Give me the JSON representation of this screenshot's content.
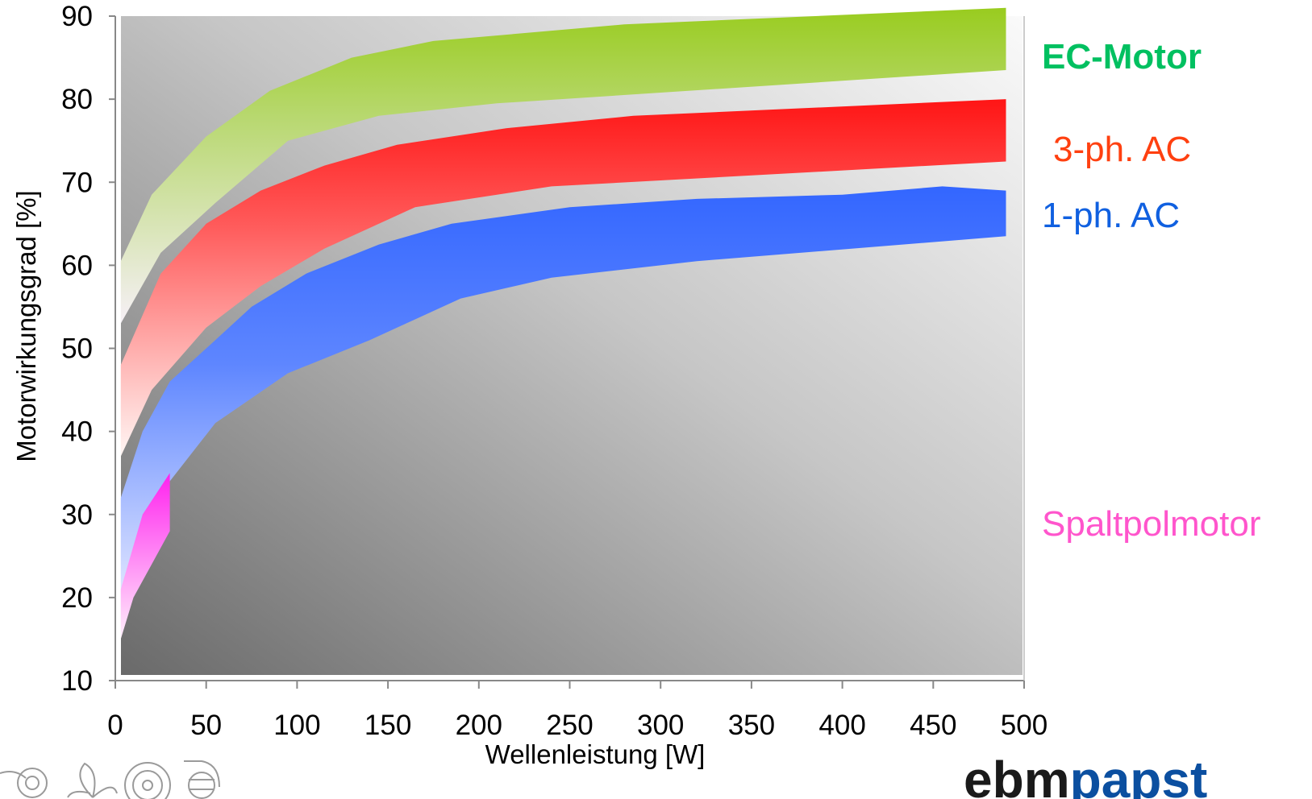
{
  "chart_data": {
    "type": "area",
    "xlabel": "Wellenleistung [W]",
    "ylabel": "Motorwirkungsgrad [%]",
    "xlim": [
      0,
      500
    ],
    "ylim": [
      10,
      90
    ],
    "x_ticks": [
      "0",
      "50",
      "100",
      "150",
      "200",
      "250",
      "300",
      "350",
      "400",
      "450",
      "500"
    ],
    "y_ticks": [
      "10",
      "20",
      "30",
      "40",
      "50",
      "60",
      "70",
      "80",
      "90"
    ],
    "grid": false,
    "legend_placement": "right",
    "series": [
      {
        "name": "EC-Motor",
        "color": "#00c060",
        "fill_color": "#99cc1f",
        "upper": [
          [
            3,
            60.5
          ],
          [
            20,
            68.5
          ],
          [
            50,
            75.5
          ],
          [
            85,
            81
          ],
          [
            130,
            85
          ],
          [
            175,
            87
          ],
          [
            280,
            89
          ],
          [
            490,
            91
          ]
        ],
        "lower": [
          [
            3,
            53
          ],
          [
            25,
            61.5
          ],
          [
            55,
            67.5
          ],
          [
            95,
            75
          ],
          [
            145,
            78
          ],
          [
            210,
            79.5
          ],
          [
            490,
            83.5
          ]
        ]
      },
      {
        "name": "3-ph. AC",
        "color": "#ff4010",
        "fill_color": "#ff1a1a",
        "upper": [
          [
            3,
            48
          ],
          [
            25,
            59
          ],
          [
            50,
            65
          ],
          [
            80,
            69
          ],
          [
            115,
            72
          ],
          [
            155,
            74.5
          ],
          [
            215,
            76.5
          ],
          [
            285,
            78
          ],
          [
            490,
            80
          ]
        ],
        "lower": [
          [
            3,
            37
          ],
          [
            20,
            45
          ],
          [
            50,
            52.5
          ],
          [
            80,
            57.5
          ],
          [
            115,
            62
          ],
          [
            165,
            67
          ],
          [
            240,
            69.5
          ],
          [
            490,
            72.5
          ]
        ]
      },
      {
        "name": "1-ph. AC",
        "color": "#1060e0",
        "fill_color": "#3366ff",
        "upper": [
          [
            3,
            32
          ],
          [
            15,
            40
          ],
          [
            30,
            46
          ],
          [
            55,
            51
          ],
          [
            75,
            55
          ],
          [
            105,
            59
          ],
          [
            145,
            62.5
          ],
          [
            185,
            65
          ],
          [
            250,
            67
          ],
          [
            320,
            68
          ],
          [
            400,
            68.5
          ],
          [
            455,
            69.5
          ],
          [
            490,
            69
          ]
        ],
        "lower": [
          [
            3,
            16
          ],
          [
            15,
            25
          ],
          [
            30,
            34
          ],
          [
            55,
            41
          ],
          [
            95,
            47
          ],
          [
            140,
            51
          ],
          [
            190,
            56
          ],
          [
            240,
            58.5
          ],
          [
            320,
            60.5
          ],
          [
            490,
            63.5
          ]
        ]
      },
      {
        "name": "Spaltpolmotor",
        "color": "#ff55cc",
        "fill_color": "#ff22ee",
        "upper": [
          [
            3,
            21
          ],
          [
            15,
            30
          ],
          [
            30,
            35
          ]
        ],
        "lower": [
          [
            3,
            15
          ],
          [
            10,
            20
          ],
          [
            20,
            24
          ],
          [
            30,
            28
          ]
        ]
      }
    ]
  },
  "brand": {
    "logo_part1": "ebm",
    "logo_part2": "papst",
    "logo_color1": "#1a1a1a",
    "logo_color2": "#0b4fa0"
  },
  "icons": [
    "blower-icon",
    "axial-fan-icon",
    "fan-guard-icon",
    "radial-blower-icon"
  ]
}
